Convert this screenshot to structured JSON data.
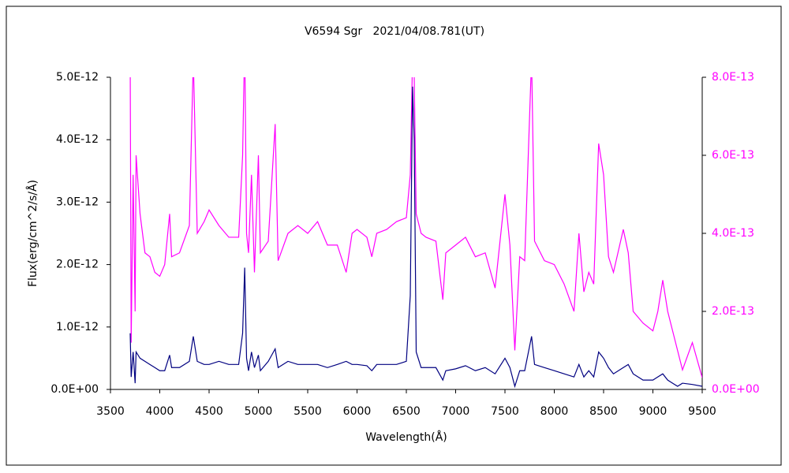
{
  "chart_data": {
    "type": "line",
    "title": "V6594 Sgr   2021/04/08.781(UT)",
    "x_label": "Wavelength(Å)",
    "y_label": "Flux(erg/cm^2/s/Å)",
    "xlim": [
      3500,
      9500
    ],
    "xticks": [
      3500,
      4000,
      4500,
      5000,
      5500,
      6000,
      6500,
      7000,
      7500,
      8000,
      8500,
      9000,
      9500
    ],
    "ylim": [
      0,
      5e-12
    ],
    "yticks": [
      {
        "value": 0,
        "label": "0.0E+00"
      },
      {
        "value": 1e-12,
        "label": "1.0E-12"
      },
      {
        "value": 2e-12,
        "label": "2.0E-12"
      },
      {
        "value": 3e-12,
        "label": "3.0E-12"
      },
      {
        "value": 4e-12,
        "label": "4.0E-12"
      },
      {
        "value": 5e-12,
        "label": "5.0E-12"
      }
    ],
    "y2lim": [
      0,
      8e-13
    ],
    "y2ticks": [
      {
        "value": 0,
        "label": "0.0E+00"
      },
      {
        "value": 2e-13,
        "label": "2.0E-13"
      },
      {
        "value": 4e-13,
        "label": "4.0E-13"
      },
      {
        "value": 6e-13,
        "label": "6.0E-13"
      },
      {
        "value": 8e-13,
        "label": "8.0E-13"
      }
    ],
    "x": [
      3700,
      3710,
      3730,
      3750,
      3760,
      3800,
      3850,
      3900,
      3950,
      4000,
      4050,
      4100,
      4120,
      4200,
      4300,
      4340,
      4380,
      4450,
      4500,
      4600,
      4700,
      4800,
      4840,
      4861,
      4880,
      4900,
      4930,
      4960,
      5000,
      5020,
      5100,
      5170,
      5200,
      5300,
      5400,
      5500,
      5600,
      5700,
      5800,
      5890,
      5950,
      6000,
      6100,
      6150,
      6200,
      6300,
      6400,
      6500,
      6540,
      6563,
      6580,
      6600,
      6650,
      6700,
      6800,
      6870,
      6900,
      7000,
      7100,
      7200,
      7300,
      7400,
      7500,
      7550,
      7600,
      7650,
      7700,
      7770,
      7800,
      7900,
      8000,
      8100,
      8200,
      8250,
      8300,
      8350,
      8400,
      8450,
      8500,
      8550,
      8600,
      8700,
      8750,
      8800,
      8900,
      9000,
      9050,
      9100,
      9150,
      9200,
      9250,
      9300,
      9400,
      9500
    ],
    "series": [
      {
        "color": "#000080",
        "values": [
          9e-13,
          2e-13,
          6e-13,
          1e-13,
          6e-13,
          5e-13,
          4.5e-13,
          4e-13,
          3.5e-13,
          3e-13,
          3e-13,
          5.5e-13,
          3.5e-13,
          3.5e-13,
          4.5e-13,
          8.5e-13,
          4.5e-13,
          4e-13,
          4e-13,
          4.5e-13,
          4e-13,
          4e-13,
          9e-13,
          1.95e-12,
          5e-13,
          3e-13,
          6e-13,
          3.5e-13,
          5.5e-13,
          3e-13,
          4.5e-13,
          6.5e-13,
          3.5e-13,
          4.5e-13,
          4e-13,
          4e-13,
          4e-13,
          3.5e-13,
          4e-13,
          4.5e-13,
          4e-13,
          4e-13,
          3.8e-13,
          3e-13,
          4e-13,
          4e-13,
          4e-13,
          4.5e-13,
          1.5e-12,
          4.85e-12,
          4e-12,
          6e-13,
          3.5e-13,
          3.5e-13,
          3.5e-13,
          1.5e-13,
          3e-13,
          3.3e-13,
          3.8e-13,
          3e-13,
          3.5e-13,
          2.5e-13,
          5e-13,
          3.5e-13,
          5e-14,
          3e-13,
          3e-13,
          8.5e-13,
          4e-13,
          3.5e-13,
          3e-13,
          2.5e-13,
          2e-13,
          4e-13,
          2e-13,
          3e-13,
          2e-13,
          6e-13,
          5e-13,
          3.5e-13,
          2.5e-13,
          3.5e-13,
          4e-13,
          2.5e-13,
          1.5e-13,
          1.5e-13,
          2e-13,
          2.5e-13,
          1.5e-13,
          1e-13,
          5e-14,
          1e-13,
          8e-14,
          5e-14
        ]
      },
      {
        "color": "#ff00ff",
        "axis": "y2",
        "values": [
          8.5e-13,
          1.2e-13,
          5.5e-13,
          2e-13,
          6e-13,
          4.5e-13,
          3.5e-13,
          3.4e-13,
          3e-13,
          2.9e-13,
          3.2e-13,
          4.5e-13,
          3.4e-13,
          3.5e-13,
          4.2e-13,
          8.5e-13,
          4e-13,
          4.3e-13,
          4.6e-13,
          4.2e-13,
          3.9e-13,
          3.9e-13,
          6e-13,
          9e-13,
          4e-13,
          3.5e-13,
          5.5e-13,
          3e-13,
          6e-13,
          3.5e-13,
          3.8e-13,
          6.8e-13,
          3.3e-13,
          4e-13,
          4.2e-13,
          4e-13,
          4.3e-13,
          3.7e-13,
          3.7e-13,
          3e-13,
          4e-13,
          4.1e-13,
          3.9e-13,
          3.4e-13,
          4e-13,
          4.1e-13,
          4.3e-13,
          4.4e-13,
          5.5e-13,
          8.5e-13,
          8e-13,
          4.5e-13,
          4e-13,
          3.9e-13,
          3.8e-13,
          2.3e-13,
          3.5e-13,
          3.7e-13,
          3.9e-13,
          3.4e-13,
          3.5e-13,
          2.6e-13,
          5e-13,
          3.7e-13,
          1e-13,
          3.4e-13,
          3.3e-13,
          8.5e-13,
          3.8e-13,
          3.3e-13,
          3.2e-13,
          2.7e-13,
          2e-13,
          4e-13,
          2.5e-13,
          3e-13,
          2.7e-13,
          6.3e-13,
          5.5e-13,
          3.4e-13,
          3e-13,
          4.1e-13,
          3.5e-13,
          2e-13,
          1.7e-13,
          1.5e-13,
          2e-13,
          2.8e-13,
          2e-13,
          1.5e-13,
          1e-13,
          5e-14,
          1.2e-13,
          3e-14
        ]
      }
    ]
  }
}
